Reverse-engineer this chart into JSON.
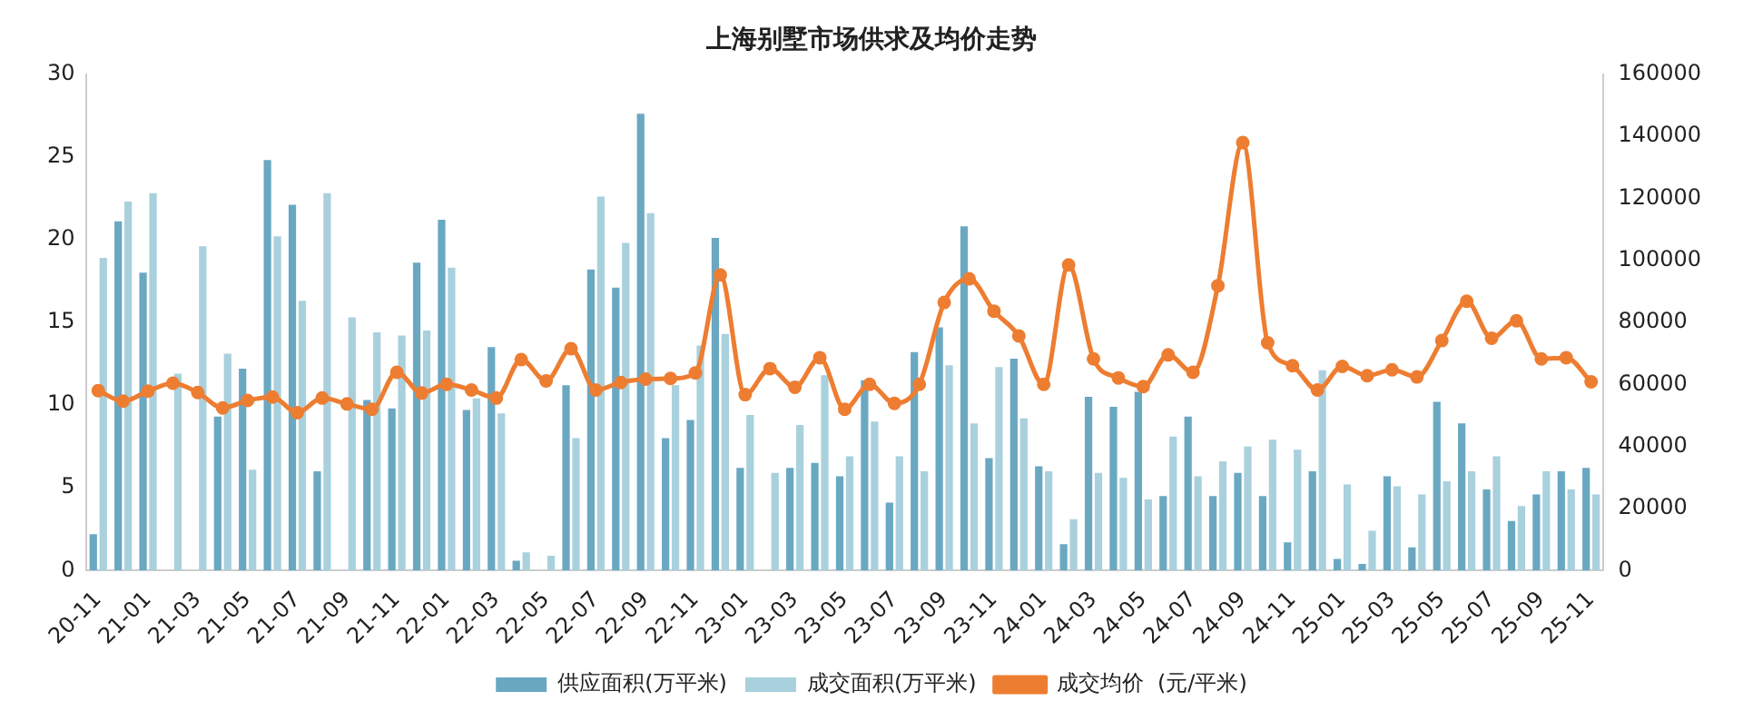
{
  "chart_data": {
    "type": "bar",
    "title": "上海别墅市场供求及均价走势",
    "categories": [
      "20-11",
      null,
      "21-01",
      null,
      "21-03",
      null,
      "21-05",
      null,
      "21-07",
      null,
      "21-09",
      null,
      "21-11",
      null,
      "22-01",
      null,
      "22-03",
      null,
      "22-05",
      null,
      "22-07",
      null,
      "22-09",
      null,
      "22-11",
      null,
      "23-01",
      null,
      "23-03",
      null,
      "23-05",
      null,
      "23-07",
      null,
      "23-09",
      null,
      "23-11",
      null,
      "24-01",
      null,
      "24-03",
      null,
      "24-05",
      null,
      "24-07",
      null,
      "24-09",
      null,
      "24-11",
      null,
      "25-01",
      null,
      "25-03",
      null,
      "25-05",
      null,
      "25-07",
      null,
      "25-09",
      null,
      "25-11"
    ],
    "series": [
      {
        "name": "供应面积(万平米)",
        "color": "#6aa8c2",
        "values": [
          2.2,
          21.1,
          18.0,
          null,
          null,
          9.3,
          12.2,
          24.8,
          22.1,
          6.0,
          null,
          10.3,
          9.8,
          18.6,
          21.2,
          9.7,
          13.5,
          0.6,
          null,
          11.2,
          18.2,
          17.1,
          27.6,
          8.0,
          9.1,
          20.1,
          6.2,
          null,
          6.2,
          6.5,
          5.7,
          11.5,
          4.1,
          13.2,
          14.7,
          20.8,
          6.8,
          12.8,
          6.3,
          1.6,
          10.5,
          9.9,
          10.8,
          4.5,
          9.3,
          4.5,
          5.9,
          4.5,
          1.7,
          6.0,
          0.7,
          0.4,
          5.7,
          1.4,
          10.2,
          8.9,
          4.9,
          3.0,
          4.6,
          6.0,
          6.2
        ]
      },
      {
        "name": "成交面积(万平米)",
        "color": "#a9d0dd",
        "values": [
          18.9,
          22.3,
          22.8,
          11.9,
          19.6,
          13.1,
          6.1,
          20.2,
          16.3,
          22.8,
          15.3,
          14.4,
          14.2,
          14.5,
          18.3,
          10.4,
          9.5,
          1.1,
          0.9,
          8.0,
          22.6,
          19.8,
          21.6,
          11.2,
          13.6,
          14.3,
          9.4,
          5.9,
          8.8,
          11.8,
          6.9,
          9.0,
          6.9,
          6.0,
          12.4,
          8.9,
          12.3,
          9.2,
          6.0,
          3.1,
          5.9,
          5.6,
          4.3,
          8.1,
          5.7,
          6.6,
          7.5,
          7.9,
          7.3,
          12.1,
          5.2,
          2.4,
          5.1,
          4.6,
          5.4,
          6.0,
          6.9,
          3.9,
          6.0,
          4.9,
          4.6
        ]
      },
      {
        "name": "成交均价  (元/平米)",
        "type": "line",
        "axis": "y2",
        "color": "#ed7d31",
        "values": [
          58000,
          54600,
          57800,
          60400,
          57400,
          52400,
          54800,
          55900,
          50900,
          55600,
          53700,
          52000,
          63900,
          57200,
          60000,
          58200,
          55600,
          68000,
          61100,
          71500,
          58200,
          60600,
          61700,
          61900,
          63700,
          95300,
          56700,
          65100,
          59100,
          68600,
          52000,
          60000,
          53900,
          60000,
          86400,
          94000,
          83600,
          75600,
          60000,
          98500,
          68200,
          62100,
          59300,
          69500,
          63900,
          91800,
          137900,
          73400,
          66000,
          58200,
          65800,
          62800,
          64700,
          62400,
          74100,
          86800,
          74900,
          80500,
          68200,
          68600,
          60800
        ]
      }
    ],
    "ylim": [
      0,
      30
    ],
    "yticks": [
      0,
      5,
      10,
      15,
      20,
      25,
      30
    ],
    "y2lim": [
      0,
      160000
    ],
    "y2ticks": [
      0,
      20000,
      40000,
      60000,
      80000,
      100000,
      120000,
      140000,
      160000
    ],
    "grid": false,
    "legend": "bottom",
    "marker": "circle",
    "line_style": "solid"
  }
}
